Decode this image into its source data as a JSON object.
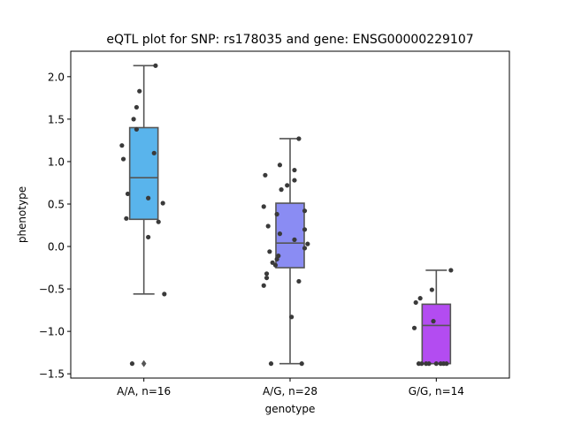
{
  "chart_data": {
    "type": "box",
    "title": "eQTL plot for SNP: rs178035 and gene: ENSG00000229107",
    "xlabel": "genotype",
    "ylabel": "phenotype",
    "ylim": [
      -1.55,
      2.3
    ],
    "yticks": [
      -1.5,
      -1.0,
      -0.5,
      0.0,
      0.5,
      1.0,
      1.5,
      2.0
    ],
    "ytick_labels": [
      "−1.5",
      "−1.0",
      "−0.5",
      "0.0",
      "0.5",
      "1.0",
      "1.5",
      "2.0"
    ],
    "categories": [
      "A/A, n=16",
      "A/G, n=28",
      "G/G, n=14"
    ],
    "boxes": [
      {
        "color": "#59b4ec",
        "q1": 0.32,
        "median": 0.81,
        "q3": 1.4,
        "whisker_low": -0.56,
        "whisker_high": 2.13,
        "outliers": [
          -1.38
        ]
      },
      {
        "color": "#8a8cf3",
        "q1": -0.25,
        "median": 0.04,
        "q3": 0.51,
        "whisker_low": -1.38,
        "whisker_high": 1.27,
        "outliers": []
      },
      {
        "color": "#b34cf1",
        "q1": -1.38,
        "median": -0.93,
        "q3": -0.68,
        "whisker_low": -1.38,
        "whisker_high": -0.28,
        "outliers": []
      }
    ],
    "points": [
      [
        {
          "dx": 0.08,
          "y": 2.13
        },
        {
          "dx": -0.03,
          "y": 1.83
        },
        {
          "dx": -0.05,
          "y": 1.64
        },
        {
          "dx": -0.07,
          "y": 1.5
        },
        {
          "dx": -0.05,
          "y": 1.38
        },
        {
          "dx": -0.15,
          "y": 1.19
        },
        {
          "dx": 0.07,
          "y": 1.1
        },
        {
          "dx": -0.14,
          "y": 1.03
        },
        {
          "dx": -0.11,
          "y": 0.62
        },
        {
          "dx": 0.03,
          "y": 0.57
        },
        {
          "dx": 0.13,
          "y": 0.51
        },
        {
          "dx": -0.12,
          "y": 0.33
        },
        {
          "dx": 0.1,
          "y": 0.29
        },
        {
          "dx": 0.03,
          "y": 0.11
        },
        {
          "dx": 0.14,
          "y": -0.56
        },
        {
          "dx": -0.08,
          "y": -1.38
        }
      ],
      [
        {
          "dx": 0.06,
          "y": 1.27
        },
        {
          "dx": -0.07,
          "y": 0.96
        },
        {
          "dx": 0.03,
          "y": 0.9
        },
        {
          "dx": -0.17,
          "y": 0.84
        },
        {
          "dx": 0.03,
          "y": 0.78
        },
        {
          "dx": -0.02,
          "y": 0.72
        },
        {
          "dx": -0.06,
          "y": 0.67
        },
        {
          "dx": -0.18,
          "y": 0.47
        },
        {
          "dx": 0.1,
          "y": 0.42
        },
        {
          "dx": -0.09,
          "y": 0.38
        },
        {
          "dx": -0.15,
          "y": 0.24
        },
        {
          "dx": 0.1,
          "y": 0.2
        },
        {
          "dx": -0.07,
          "y": 0.15
        },
        {
          "dx": 0.03,
          "y": 0.08
        },
        {
          "dx": 0.12,
          "y": 0.03
        },
        {
          "dx": 0.1,
          "y": -0.02
        },
        {
          "dx": -0.14,
          "y": -0.06
        },
        {
          "dx": -0.08,
          "y": -0.11
        },
        {
          "dx": -0.09,
          "y": -0.15
        },
        {
          "dx": -0.12,
          "y": -0.19
        },
        {
          "dx": -0.1,
          "y": -0.22
        },
        {
          "dx": -0.16,
          "y": -0.32
        },
        {
          "dx": -0.16,
          "y": -0.37
        },
        {
          "dx": 0.06,
          "y": -0.41
        },
        {
          "dx": -0.18,
          "y": -0.46
        },
        {
          "dx": 0.01,
          "y": -0.83
        },
        {
          "dx": -0.13,
          "y": -1.38
        },
        {
          "dx": 0.08,
          "y": -1.38
        }
      ],
      [
        {
          "dx": 0.1,
          "y": -0.28
        },
        {
          "dx": -0.03,
          "y": -0.51
        },
        {
          "dx": -0.11,
          "y": -0.61
        },
        {
          "dx": -0.14,
          "y": -0.66
        },
        {
          "dx": -0.02,
          "y": -0.88
        },
        {
          "dx": -0.15,
          "y": -0.96
        },
        {
          "dx": -0.12,
          "y": -1.38
        },
        {
          "dx": -0.1,
          "y": -1.38
        },
        {
          "dx": -0.07,
          "y": -1.38
        },
        {
          "dx": 0.0,
          "y": -1.38
        },
        {
          "dx": 0.03,
          "y": -1.38
        },
        {
          "dx": 0.05,
          "y": -1.38
        },
        {
          "dx": 0.07,
          "y": -1.38
        },
        {
          "dx": -0.05,
          "y": -1.38
        }
      ]
    ]
  }
}
